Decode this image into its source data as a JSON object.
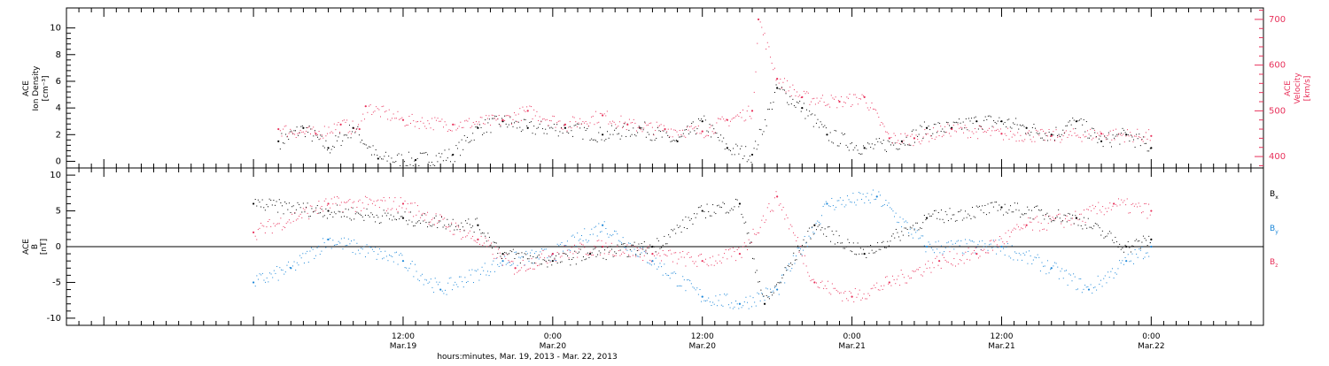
{
  "colors": {
    "density": "#000000",
    "velocity": "#e8305a",
    "bx": "#000000",
    "by": "#1a86d8",
    "bz": "#e8305a"
  },
  "x_axis": {
    "ticks": [
      {
        "time": "12:00",
        "date": "Mar.19"
      },
      {
        "time": "0:00",
        "date": "Mar.20"
      },
      {
        "time": "12:00",
        "date": "Mar.20"
      },
      {
        "time": "0:00",
        "date": "Mar.21"
      },
      {
        "time": "12:00",
        "date": "Mar.21"
      },
      {
        "time": "0:00",
        "date": "Mar.22"
      }
    ],
    "label": "hours:minutes, Mar. 19, 2013 - Mar. 22, 2013"
  },
  "chart_data": [
    {
      "type": "scatter",
      "ylabel": [
        "ACE",
        "Ion Density",
        "[cm⁻³]"
      ],
      "ylim": [
        -0.5,
        11.5
      ],
      "yticks": [
        "0",
        "2",
        "4",
        "6",
        "8",
        "10"
      ],
      "grid": false,
      "series": [
        {
          "name": "ACE Ion Density",
          "axis": "left",
          "x": [
            "2013-03-19 02:00",
            "2013-03-19 04:00",
            "2013-03-19 06:00",
            "2013-03-19 08:00",
            "2013-03-19 10:00",
            "2013-03-19 13:00",
            "2013-03-19 16:00",
            "2013-03-19 18:00",
            "2013-03-19 20:00",
            "2013-03-19 22:00",
            "2013-03-20 01:00",
            "2013-03-20 04:00",
            "2013-03-20 07:00",
            "2013-03-20 10:00",
            "2013-03-20 12:00",
            "2013-03-20 14:00",
            "2013-03-20 16:00",
            "2013-03-20 18:00",
            "2013-03-20 20:00",
            "2013-03-20 22:00",
            "2013-03-21 01:00",
            "2013-03-21 04:00",
            "2013-03-21 06:00",
            "2013-03-21 08:00",
            "2013-03-21 10:00",
            "2013-03-21 12:00",
            "2013-03-21 14:00",
            "2013-03-21 16:00",
            "2013-03-21 18:00",
            "2013-03-21 20:00",
            "2013-03-21 22:00",
            "2013-03-22 00:00"
          ],
          "y": [
            1.5,
            2.5,
            1.0,
            2.5,
            0.2,
            0.1,
            0.5,
            2.5,
            3.0,
            2.5,
            2.5,
            2.0,
            2.5,
            1.5,
            3.0,
            1.0,
            0.5,
            5.5,
            4.0,
            2.0,
            1.0,
            1.5,
            2.5,
            2.5,
            3.0,
            3.0,
            2.5,
            2.0,
            3.0,
            1.5,
            2.0,
            1.0
          ]
        }
      ]
    },
    {
      "type": "scatter",
      "ylabel": [
        "ACE",
        "Velocity",
        "[km/s]"
      ],
      "ylim": [
        375,
        725
      ],
      "yticks": [
        "400",
        "500",
        "600",
        "700"
      ],
      "series": [
        {
          "name": "ACE Velocity",
          "axis": "right",
          "x": [
            "2013-03-19 02:00",
            "2013-03-19 05:00",
            "2013-03-19 07:00",
            "2013-03-19 08:30",
            "2013-03-19 09:00",
            "2013-03-19 12:00",
            "2013-03-19 16:00",
            "2013-03-19 20:00",
            "2013-03-19 22:00",
            "2013-03-20 01:00",
            "2013-03-20 04:00",
            "2013-03-20 06:00",
            "2013-03-20 09:00",
            "2013-03-20 12:00",
            "2013-03-20 14:00",
            "2013-03-20 16:00",
            "2013-03-20 16:30",
            "2013-03-20 18:00",
            "2013-03-20 20:00",
            "2013-03-20 23:00",
            "2013-03-21 01:00",
            "2013-03-21 03:00",
            "2013-03-21 05:00",
            "2013-03-21 08:00",
            "2013-03-21 12:00",
            "2013-03-21 16:00",
            "2013-03-21 20:00",
            "2013-03-22 00:00"
          ],
          "y": [
            460,
            450,
            470,
            460,
            510,
            480,
            470,
            480,
            500,
            470,
            490,
            470,
            460,
            455,
            480,
            500,
            700,
            570,
            530,
            520,
            530,
            440,
            440,
            460,
            450,
            445,
            450,
            445
          ]
        }
      ]
    },
    {
      "type": "scatter",
      "ylabel": [
        "ACE",
        "B",
        "[nT]"
      ],
      "ylim": [
        -11,
        11
      ],
      "yticks": [
        "-10",
        "-5",
        "0",
        "5",
        "10"
      ],
      "legend": "right",
      "series": [
        {
          "name": "Bx",
          "x": [
            "2013-03-19 00:00",
            "2013-03-19 06:00",
            "2013-03-19 12:00",
            "2013-03-19 18:00",
            "2013-03-19 20:00",
            "2013-03-20 00:00",
            "2013-03-20 03:00",
            "2013-03-20 08:00",
            "2013-03-20 12:00",
            "2013-03-20 15:00",
            "2013-03-20 17:00",
            "2013-03-20 21:00",
            "2013-03-21 01:00",
            "2013-03-21 06:00",
            "2013-03-21 12:00",
            "2013-03-21 18:00",
            "2013-03-21 22:00",
            "2013-03-22 00:00"
          ],
          "y": [
            6,
            5,
            4,
            3,
            -1,
            -2,
            -1,
            0,
            5,
            6,
            -8,
            3,
            -1,
            4,
            5.5,
            4,
            0,
            1
          ]
        },
        {
          "name": "By",
          "x": [
            "2013-03-19 00:00",
            "2013-03-19 03:00",
            "2013-03-19 06:00",
            "2013-03-19 12:00",
            "2013-03-19 15:00",
            "2013-03-19 20:00",
            "2013-03-20 00:00",
            "2013-03-20 04:00",
            "2013-03-20 08:00",
            "2013-03-20 12:00",
            "2013-03-20 15:00",
            "2013-03-20 18:00",
            "2013-03-20 22:00",
            "2013-03-21 02:00",
            "2013-03-21 06:00",
            "2013-03-21 12:00",
            "2013-03-21 16:00",
            "2013-03-21 19:00",
            "2013-03-21 22:00",
            "2013-03-22 00:00"
          ],
          "y": [
            -5,
            -3,
            1,
            -2,
            -6,
            -2,
            -1,
            3,
            -2,
            -7,
            -8,
            -6,
            6,
            7,
            0,
            0,
            -3,
            -6,
            -2,
            0
          ]
        },
        {
          "name": "Bz",
          "x": [
            "2013-03-19 00:00",
            "2013-03-19 06:00",
            "2013-03-19 12:00",
            "2013-03-19 18:00",
            "2013-03-19 21:00",
            "2013-03-20 00:00",
            "2013-03-20 04:00",
            "2013-03-20 08:00",
            "2013-03-20 12:00",
            "2013-03-20 15:00",
            "2013-03-20 18:00",
            "2013-03-20 21:00",
            "2013-03-21 00:00",
            "2013-03-21 03:00",
            "2013-03-21 07:00",
            "2013-03-21 10:00",
            "2013-03-21 14:00",
            "2013-03-21 18:00",
            "2013-03-21 21:00",
            "2013-03-22 00:00"
          ],
          "y": [
            2,
            6,
            6,
            1,
            -3,
            -1,
            0,
            -1,
            -2,
            -1,
            7,
            -5,
            -7,
            -5,
            -2,
            -1,
            3,
            4,
            6,
            5
          ]
        }
      ]
    }
  ]
}
